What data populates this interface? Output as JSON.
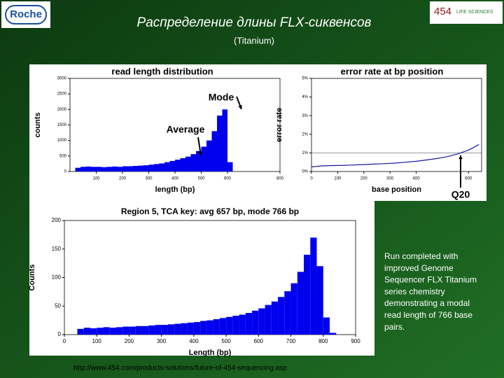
{
  "header": {
    "title": "Распределение длины FLX-сиквенсов",
    "subtitle": "(Titanium)",
    "logo_left": "Roche",
    "logo_right_number": "454",
    "logo_right_text": "LIFE SCIENCES"
  },
  "caption": "Run completed with improved Genome Sequencer FLX Titanium series chemistry demonstrating a modal read length of 766 base pairs.",
  "url": "http://www.454.com/products-solutions/future-of-454-sequencing.asp",
  "chart_data": [
    {
      "type": "histogram",
      "title": "read length distribution",
      "x_label": "length (bp)",
      "y_label": "counts",
      "color": "#0000ee",
      "bins": [
        20,
        40,
        60,
        80,
        100,
        120,
        140,
        160,
        180,
        200,
        220,
        240,
        260,
        280,
        300,
        320,
        340,
        360,
        380,
        400,
        420,
        440,
        460,
        480,
        500,
        520,
        540,
        560,
        580,
        600,
        620
      ],
      "counts": [
        120,
        150,
        160,
        150,
        150,
        140,
        150,
        160,
        150,
        170,
        170,
        180,
        190,
        200,
        220,
        240,
        260,
        300,
        340,
        380,
        430,
        480,
        560,
        660,
        800,
        1000,
        1300,
        1800,
        2000,
        300
      ],
      "xlim": [
        0,
        800
      ],
      "xticks": [
        100,
        200,
        300,
        400,
        500,
        600,
        800
      ],
      "ylim": [
        0,
        3000
      ],
      "yticks": [
        0,
        500,
        1000,
        1500,
        2000,
        2500,
        3000
      ],
      "annotations": [
        "Average",
        "Mode"
      ]
    },
    {
      "type": "line",
      "title": "error rate at bp position",
      "x_label": "base position",
      "y_label": "error rate",
      "color": "#1a1aa0",
      "x": [
        0,
        40,
        80,
        120,
        160,
        200,
        240,
        280,
        320,
        360,
        400,
        440,
        480,
        520,
        560,
        600,
        640
      ],
      "values": [
        0.25,
        0.3,
        0.32,
        0.33,
        0.35,
        0.37,
        0.4,
        0.42,
        0.45,
        0.5,
        0.55,
        0.62,
        0.7,
        0.8,
        0.95,
        1.15,
        1.45
      ],
      "reference_line": 1,
      "xlim": [
        0,
        650
      ],
      "xticks": [
        0,
        100,
        200,
        300,
        400,
        600
      ],
      "ylim": [
        0,
        5
      ],
      "yticks": [
        {
          "value": 0,
          "label": "0%"
        },
        {
          "value": 1,
          "label": "1%"
        },
        {
          "value": 2,
          "label": "2%"
        },
        {
          "value": 3,
          "label": "3%"
        },
        {
          "value": 4,
          "label": "4%"
        },
        {
          "value": 5,
          "label": "5%"
        }
      ],
      "annotations": [
        "Q20"
      ]
    },
    {
      "type": "histogram",
      "title": "Region 5, TCA key:  avg 657 bp,  mode 766 bp",
      "x_label": "Length (bp)",
      "y_label": "Counts",
      "color": "#0000ee",
      "bins": [
        40,
        60,
        80,
        100,
        120,
        140,
        160,
        180,
        200,
        220,
        240,
        260,
        280,
        300,
        320,
        340,
        360,
        380,
        400,
        420,
        440,
        460,
        480,
        500,
        520,
        540,
        560,
        580,
        600,
        620,
        640,
        660,
        680,
        700,
        720,
        740,
        760,
        780,
        800,
        820,
        840
      ],
      "counts": [
        10,
        12,
        11,
        12,
        13,
        12,
        13,
        14,
        14,
        15,
        15,
        16,
        17,
        17,
        18,
        19,
        20,
        21,
        22,
        24,
        25,
        27,
        29,
        31,
        33,
        35,
        38,
        42,
        46,
        52,
        58,
        66,
        76,
        90,
        110,
        140,
        170,
        120,
        30,
        3
      ],
      "xlim": [
        0,
        900
      ],
      "xticks": [
        0,
        100,
        200,
        300,
        400,
        500,
        600,
        700,
        800,
        900
      ],
      "ylim": [
        0,
        200
      ],
      "yticks": [
        0,
        50,
        100,
        150,
        200
      ]
    }
  ]
}
